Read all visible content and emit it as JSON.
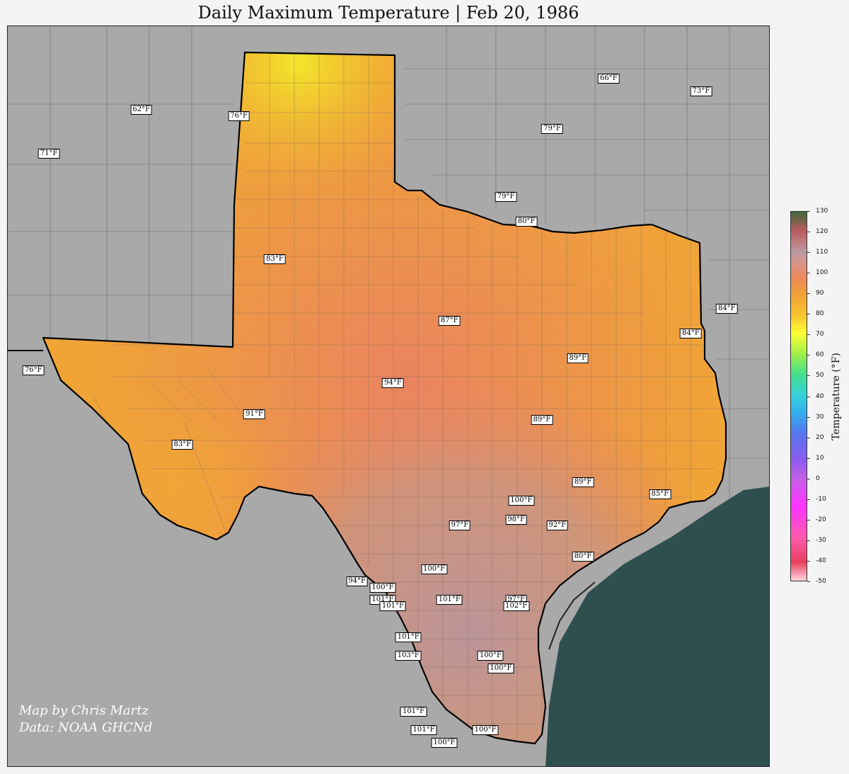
{
  "title": "Daily Maximum Temperature | Feb 20, 1986",
  "credit": {
    "line1": "Map by Chris Martz",
    "line2": "Data: NOAA GHCNd"
  },
  "colorbar": {
    "label": "Temperature (°F)",
    "min": -50,
    "max": 130,
    "ticks": [
      "130",
      "120",
      "110",
      "100",
      "90",
      "80",
      "70",
      "60",
      "50",
      "40",
      "30",
      "20",
      "10",
      "0",
      "-10",
      "-20",
      "-30",
      "-40",
      "-50"
    ]
  },
  "colors": {
    "land_outside": "#a9a9a9",
    "water": "#2f4f4f",
    "warm_orange": "#f0a035",
    "hot_salmon": "#e8806a",
    "hottest_mauve": "#c09898",
    "cool_yellow": "#f3e02a"
  },
  "stations": [
    {
      "label": "66°F",
      "lon": -95.3,
      "lat": 36.1
    },
    {
      "label": "73°F",
      "lon": -93.5,
      "lat": 35.9
    },
    {
      "label": "62°F",
      "lon": -104.4,
      "lat": 35.6
    },
    {
      "label": "79°F",
      "lon": -96.4,
      "lat": 35.3
    },
    {
      "label": "71°F",
      "lon": -106.2,
      "lat": 34.9
    },
    {
      "label": "76°F",
      "lon": -102.5,
      "lat": 35.5
    },
    {
      "label": "79°F",
      "lon": -97.3,
      "lat": 34.2
    },
    {
      "label": "80°F",
      "lon": -96.9,
      "lat": 33.8
    },
    {
      "label": "83°F",
      "lon": -101.8,
      "lat": 33.2
    },
    {
      "label": "84°F",
      "lon": -93.0,
      "lat": 32.4
    },
    {
      "label": "87°F",
      "lon": -98.4,
      "lat": 32.2
    },
    {
      "label": "84°F",
      "lon": -93.7,
      "lat": 32.0
    },
    {
      "label": "89°F",
      "lon": -95.9,
      "lat": 31.6
    },
    {
      "label": "76°F",
      "lon": -106.5,
      "lat": 31.4
    },
    {
      "label": "94°F",
      "lon": -99.5,
      "lat": 31.2
    },
    {
      "label": "91°F",
      "lon": -102.2,
      "lat": 30.7
    },
    {
      "label": "89°F",
      "lon": -96.6,
      "lat": 30.6
    },
    {
      "label": "83°F",
      "lon": -103.6,
      "lat": 30.2
    },
    {
      "label": "89°F",
      "lon": -95.8,
      "lat": 29.6
    },
    {
      "label": "85°F",
      "lon": -94.3,
      "lat": 29.4
    },
    {
      "label": "100°F",
      "lon": -97.0,
      "lat": 29.3
    },
    {
      "label": "97°F",
      "lon": -98.2,
      "lat": 28.9
    },
    {
      "label": "98°F",
      "lon": -97.1,
      "lat": 29.0
    },
    {
      "label": "92°F",
      "lon": -96.3,
      "lat": 28.9
    },
    {
      "label": "80°F",
      "lon": -95.8,
      "lat": 28.4
    },
    {
      "label": "100°F",
      "lon": -98.7,
      "lat": 28.2
    },
    {
      "label": "94°F",
      "lon": -100.2,
      "lat": 28.0
    },
    {
      "label": "100°F",
      "lon": -99.7,
      "lat": 27.9
    },
    {
      "label": "101°F",
      "lon": -99.7,
      "lat": 27.7
    },
    {
      "label": "101°F",
      "lon": -99.5,
      "lat": 27.6
    },
    {
      "label": "101°F",
      "lon": -98.4,
      "lat": 27.7
    },
    {
      "label": "97°F",
      "lon": -97.1,
      "lat": 27.7
    },
    {
      "label": "102°F",
      "lon": -97.1,
      "lat": 27.6
    },
    {
      "label": "101°F",
      "lon": -99.2,
      "lat": 27.1
    },
    {
      "label": "100°F",
      "lon": -97.6,
      "lat": 26.8
    },
    {
      "label": "103°F",
      "lon": -99.2,
      "lat": 26.8
    },
    {
      "label": "100°F",
      "lon": -97.4,
      "lat": 26.6
    },
    {
      "label": "101°F",
      "lon": -99.1,
      "lat": 25.9
    },
    {
      "label": "101°F",
      "lon": -98.9,
      "lat": 25.6
    },
    {
      "label": "100°F",
      "lon": -98.5,
      "lat": 25.4
    },
    {
      "label": "100°F",
      "lon": -97.7,
      "lat": 25.6
    }
  ]
}
